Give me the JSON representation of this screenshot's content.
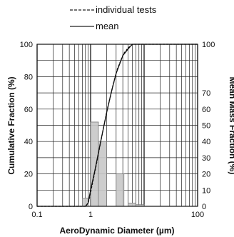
{
  "chart_data": {
    "type": "bar",
    "title": "",
    "xlabel": "AeroDynamic Diameter (µm)",
    "ylabel": "Cumulative Fraction (%)",
    "y2label": "Mean Mass Fraction (%)",
    "xscale": "log",
    "xlim": [
      0.1,
      100
    ],
    "ylim": [
      0,
      100
    ],
    "y2lim": [
      0,
      100
    ],
    "x_ticks": [
      {
        "value": 0.1,
        "label": "0.1"
      },
      {
        "value": 1,
        "label": "1"
      },
      {
        "value": 100,
        "label": "100"
      }
    ],
    "y_ticks": [
      {
        "value": 0,
        "label": "0"
      },
      {
        "value": 20,
        "label": "20"
      },
      {
        "value": 40,
        "label": "40"
      },
      {
        "value": 60,
        "label": "60"
      },
      {
        "value": 80,
        "label": "80"
      },
      {
        "value": 100,
        "label": "100"
      }
    ],
    "y2_ticks": [
      {
        "value": 0,
        "label": "0"
      },
      {
        "value": 10,
        "label": "10"
      },
      {
        "value": 20,
        "label": "20"
      },
      {
        "value": 30,
        "label": "30"
      },
      {
        "value": 40,
        "label": "40"
      },
      {
        "value": 50,
        "label": "50"
      },
      {
        "value": 60,
        "label": "60"
      },
      {
        "value": 70,
        "label": "70"
      },
      {
        "value": 100,
        "label": "100"
      }
    ],
    "grid": true,
    "legend_position": "top",
    "legend": [
      {
        "label": "individual tests",
        "style": "dashed"
      },
      {
        "label": "mean",
        "style": "solid"
      }
    ],
    "bars": [
      {
        "x0": 0.7,
        "x1": 0.9,
        "value": 5
      },
      {
        "x0": 1.0,
        "x1": 1.4,
        "value": 52
      },
      {
        "x0": 1.4,
        "x1": 2.0,
        "value": 40
      },
      {
        "x0": 3.0,
        "x1": 4.2,
        "value": 20
      },
      {
        "x0": 5.0,
        "x1": 7.0,
        "value": 2
      },
      {
        "x0": 7.0,
        "x1": 10.0,
        "value": 1
      }
    ],
    "series": [
      {
        "name": "mean",
        "style": "solid",
        "points": [
          [
            0.1,
            0
          ],
          [
            0.8,
            0
          ],
          [
            0.9,
            2
          ],
          [
            1.0,
            10
          ],
          [
            1.2,
            22
          ],
          [
            1.5,
            38
          ],
          [
            2.0,
            58
          ],
          [
            2.5,
            72
          ],
          [
            3.0,
            82
          ],
          [
            4.0,
            93
          ],
          [
            5.0,
            97
          ],
          [
            6.0,
            100
          ],
          [
            100,
            100
          ]
        ]
      },
      {
        "name": "individual tests",
        "style": "dashed",
        "points": [
          [
            0.1,
            0
          ],
          [
            0.82,
            0
          ],
          [
            0.92,
            3
          ],
          [
            1.05,
            12
          ],
          [
            1.25,
            24
          ],
          [
            1.55,
            40
          ],
          [
            2.05,
            60
          ],
          [
            2.6,
            74
          ],
          [
            3.1,
            84
          ],
          [
            4.1,
            94
          ],
          [
            5.1,
            98
          ],
          [
            6.2,
            100
          ],
          [
            100,
            100
          ]
        ]
      }
    ]
  }
}
